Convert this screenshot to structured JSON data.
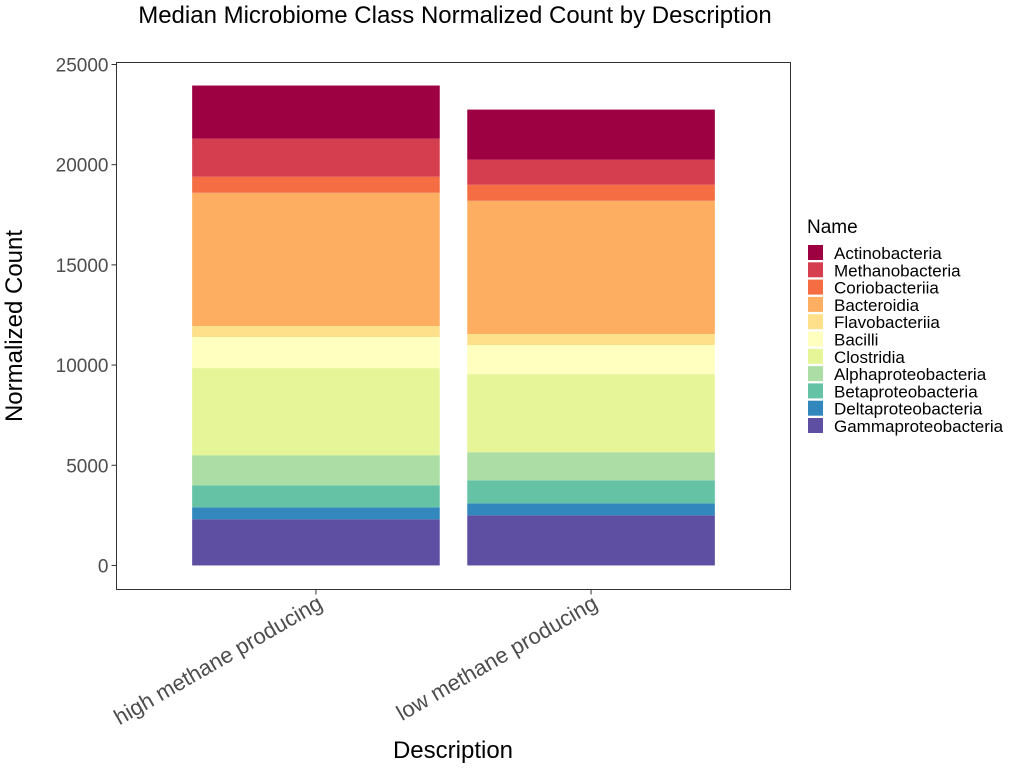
{
  "chart_data": {
    "type": "bar",
    "stacked": true,
    "title": "Median Microbiome Class Normalized Count by Description",
    "xlabel": "Description",
    "ylabel": "Normalized Count",
    "ylim": [
      -1200,
      25100
    ],
    "yticks": [
      0,
      5000,
      10000,
      15000,
      20000,
      25000
    ],
    "categories": [
      "high methane producing",
      "low methane producing"
    ],
    "legend": {
      "title": "Name",
      "position": "right"
    },
    "grid": false,
    "series": [
      {
        "name": "Gammaproteobacteria",
        "color": "#5E4FA2",
        "values": [
          2300,
          2500
        ]
      },
      {
        "name": "Deltaproteobacteria",
        "color": "#3288BD",
        "values": [
          600,
          600
        ]
      },
      {
        "name": "Betaproteobacteria",
        "color": "#66C2A5",
        "values": [
          1100,
          1150
        ]
      },
      {
        "name": "Alphaproteobacteria",
        "color": "#ABDDA4",
        "values": [
          1500,
          1400
        ]
      },
      {
        "name": "Clostridia",
        "color": "#E6F598",
        "values": [
          4350,
          3900
        ]
      },
      {
        "name": "Bacilli",
        "color": "#FFFFBF",
        "values": [
          1550,
          1450
        ]
      },
      {
        "name": "Flavobacteriia",
        "color": "#FEE08B",
        "values": [
          550,
          550
        ]
      },
      {
        "name": "Bacteroidia",
        "color": "#FDAE61",
        "values": [
          6650,
          6650
        ]
      },
      {
        "name": "Coriobacteriia",
        "color": "#F46D43",
        "values": [
          800,
          800
        ]
      },
      {
        "name": "Methanobacteria",
        "color": "#D53E4F",
        "values": [
          1900,
          1250
        ]
      },
      {
        "name": "Actinobacteria",
        "color": "#9E0142",
        "values": [
          2650,
          2500
        ]
      }
    ]
  }
}
